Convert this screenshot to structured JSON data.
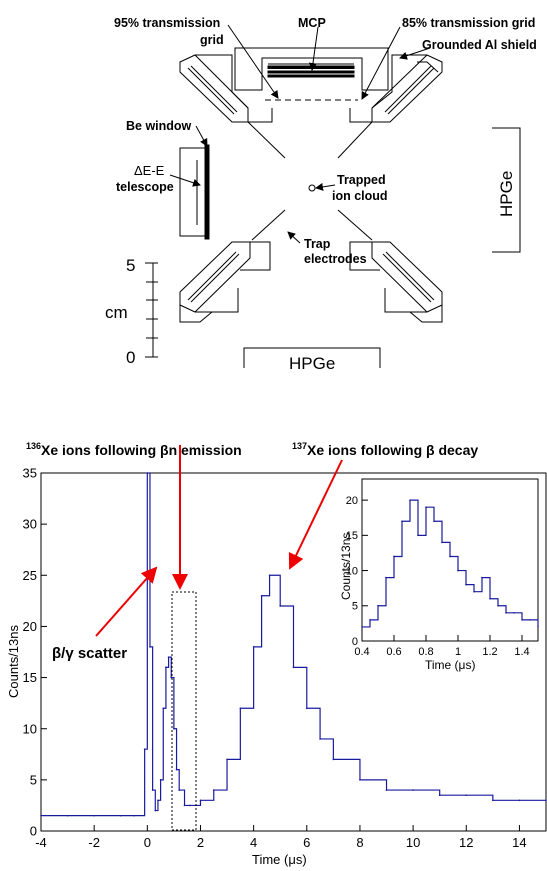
{
  "diagram": {
    "labels": {
      "grid95": [
        "95% transmission",
        "grid"
      ],
      "mcp": "MCP",
      "grid85": "85% transmission grid",
      "shield": "Grounded Al shield",
      "be_window": "Be window",
      "telescope": [
        "ΔE-E",
        "telescope"
      ],
      "ion_cloud": [
        "Trapped",
        "ion cloud"
      ],
      "electrodes": [
        "Trap",
        "electrodes"
      ],
      "hpge_bottom": "HPGe",
      "hpge_right": "HPGe"
    },
    "scale_bar": {
      "top_label": "5",
      "unit": "cm",
      "bottom_label": "0"
    }
  },
  "chart_data": [
    {
      "type": "line",
      "xlabel": "Time (μs)",
      "ylabel": "Counts/13ns",
      "xlim": [
        -4,
        15
      ],
      "ylim": [
        0,
        35
      ],
      "xticks": [
        "-4",
        "-2",
        "0",
        "2",
        "4",
        "6",
        "8",
        "10",
        "12",
        "14"
      ],
      "yticks": [
        "0",
        "5",
        "10",
        "15",
        "20",
        "25",
        "30",
        "35"
      ],
      "annotations": {
        "xe136": {
          "sup": "136",
          "text": "Xe ions following βn emission"
        },
        "xe137": {
          "sup": "137",
          "text": "Xe ions following β decay"
        },
        "scatter": "β/γ scatter"
      },
      "series": [
        {
          "x": [
            -4,
            -3,
            -2,
            -1,
            -0.5,
            -0.1,
            0,
            0.1,
            0.2,
            0.3,
            0.4,
            0.5,
            0.6,
            0.7,
            0.8,
            0.9,
            1,
            1.1,
            1.2,
            1.4,
            1.6,
            2,
            2.5,
            3,
            3.5,
            4,
            4.3,
            4.6,
            5,
            5.5,
            6,
            6.5,
            7,
            8,
            9,
            10,
            11,
            12,
            13,
            14,
            15
          ],
          "y": [
            1.5,
            1.5,
            1.5,
            1.5,
            1.5,
            8,
            35,
            18,
            4,
            2,
            3,
            5,
            12,
            16,
            17,
            15,
            10,
            6,
            4,
            2.5,
            2.5,
            3,
            4,
            7,
            12,
            18,
            23,
            25,
            22,
            16,
            12,
            9,
            7,
            5,
            4,
            4,
            3.5,
            3.5,
            3,
            3,
            3
          ]
        }
      ]
    },
    {
      "type": "line",
      "xlabel": "Time (μs)",
      "ylabel": "Counts/13ns",
      "xlim": [
        0.4,
        1.5
      ],
      "ylim": [
        0,
        23
      ],
      "xticks": [
        "0.4",
        "0.6",
        "0.8",
        "1",
        "1.2",
        "1.4"
      ],
      "yticks": [
        "0",
        "5",
        "10",
        "15",
        "20"
      ],
      "series": [
        {
          "x": [
            0.4,
            0.45,
            0.5,
            0.55,
            0.6,
            0.65,
            0.7,
            0.75,
            0.8,
            0.85,
            0.9,
            0.95,
            1,
            1.05,
            1.1,
            1.15,
            1.2,
            1.25,
            1.3,
            1.35,
            1.4,
            1.45,
            1.5
          ],
          "y": [
            2,
            3,
            5,
            9,
            12,
            17,
            20,
            15,
            19,
            17,
            14,
            12,
            10,
            8,
            7,
            9,
            6,
            5,
            4,
            4,
            3,
            3,
            2
          ]
        }
      ]
    }
  ]
}
